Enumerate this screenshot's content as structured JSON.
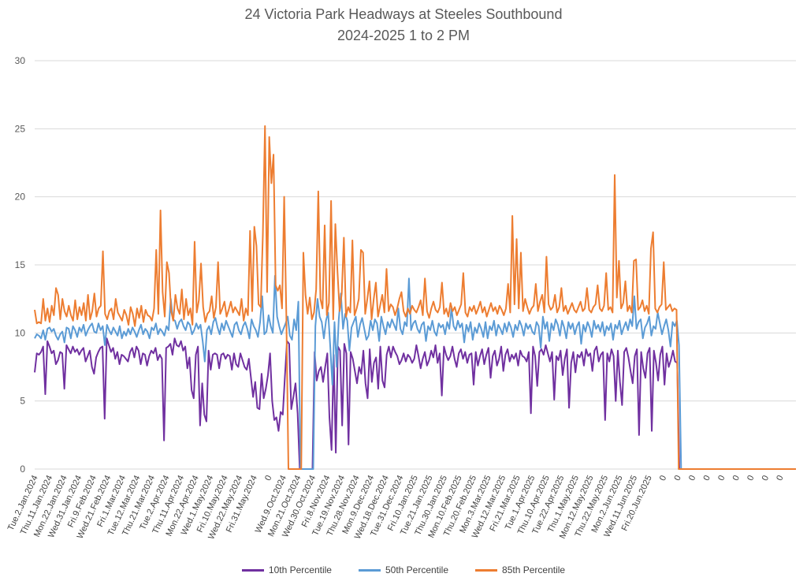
{
  "chart_data": {
    "type": "line",
    "title": [
      "24 Victoria Park Headways at Steeles Southbound",
      "2024-2025 1 to 2 PM"
    ],
    "xlabel": "",
    "ylabel": "",
    "ylim": [
      0,
      30
    ],
    "yticks": [
      0,
      5,
      10,
      15,
      20,
      25,
      30
    ],
    "grid": "horizontal",
    "legend_position": "bottom",
    "x_tick_labels": [
      "Tue.2.Jan.2024",
      "Thu.11.Jan.2024",
      "Mon.22.Jan.2024",
      "Wed.31.Jan.2024",
      "Fri.9.Feb.2024",
      "Wed.21.Feb.2024",
      "Fri.1.Mar.2024",
      "Tue.12.Mar.2024",
      "Thu.21.Mar.2024",
      "Tue.2.Apr.2024",
      "Thu.11.Apr.2024",
      "Mon.22.Apr.2024",
      "Wed.1.May.2024",
      "Fri.10.May.2024",
      "Wed.22.May.2024",
      "Fri.31.May.2024",
      "0",
      "Wed.9.Oct.2024",
      "Mon.21.Oct.2024",
      "Wed.30.Oct.2024",
      "Fri.8.Nov.2024",
      "Tue.19.Nov.2024",
      "Thu.28.Nov.2024",
      "Mon.9.Dec.2024",
      "Wed.18.Dec.2024",
      "Tue.31.Dec.2024",
      "Fri.10.Jan.2025",
      "Tue.21.Jan.2025",
      "Thu.30.Jan.2025",
      "Mon.10.Feb.2025",
      "Thu.20.Feb.2025",
      "Mon.3.Mar.2025",
      "Wed.12.Mar.2025",
      "Fri.21.Mar.2025",
      "Tue.1.Apr.2025",
      "Thu.10.Apr.2025",
      "Tue.22.Apr.2025",
      "Thu.1.May.2025",
      "Mon.12.May.2025",
      "Thu.22.May.2025",
      "Mon.2.Jun.2025",
      "Wed.11.Jun.2025",
      "Fri.20.Jun.2025",
      "0",
      "0",
      "0",
      "0",
      "0",
      "0",
      "0",
      "0",
      "0"
    ],
    "series": [
      {
        "name": "10th Percentile",
        "color": "#7030A0",
        "values": [
          7.1,
          8.5,
          8.4,
          8.6,
          9.0,
          5.5,
          9.4,
          9.0,
          8.5,
          8.7,
          7.7,
          8.0,
          8.6,
          8.5,
          5.9,
          9.1,
          8.8,
          8.5,
          9.0,
          8.6,
          8.8,
          8.4,
          8.7,
          8.9,
          7.9,
          8.3,
          8.7,
          7.5,
          7.0,
          8.2,
          8.6,
          8.9,
          9.0,
          3.7,
          9.6,
          9.1,
          8.6,
          8.9,
          8.1,
          8.6,
          7.7,
          8.4,
          8.3,
          8.1,
          7.9,
          8.6,
          8.9,
          8.2,
          9.0,
          8.7,
          7.7,
          8.5,
          8.4,
          7.6,
          8.3,
          8.7,
          8.5,
          8.9,
          8.0,
          8.4,
          8.1,
          2.1,
          8.9,
          9.0,
          9.2,
          8.4,
          9.6,
          9.1,
          9.0,
          9.4,
          8.7,
          9.0,
          7.4,
          8.2,
          5.8,
          5.2,
          8.4,
          9.0,
          3.2,
          6.3,
          4.0,
          3.5,
          8.7,
          7.3,
          8.4,
          8.5,
          8.4,
          7.4,
          8.4,
          8.5,
          8.1,
          8.4,
          8.3,
          7.3,
          8.5,
          7.7,
          7.5,
          8.5,
          8.0,
          7.5,
          7.3,
          8.1,
          6.7,
          5.3,
          6.4,
          4.5,
          4.4,
          7.0,
          5.2,
          5.9,
          6.9,
          8.5,
          5.0,
          3.6,
          3.8,
          2.8,
          4.2,
          4.0,
          6.8,
          9.4,
          9.2,
          4.4,
          5.3,
          6.3,
          4.1,
          0,
          0,
          0,
          0,
          0,
          0,
          0,
          8.6,
          6.5,
          7.2,
          7.5,
          6.4,
          7.5,
          8.5,
          3.8,
          1.4,
          8.4,
          1.2,
          9.0,
          8.7,
          3.2,
          9.2,
          8.5,
          1.8,
          8.6,
          8.1,
          7.2,
          6.3,
          7.5,
          7.0,
          8.7,
          6.3,
          5.2,
          8.8,
          6.4,
          7.8,
          8.2,
          5.9,
          9.0,
          6.5,
          6.0,
          8.4,
          9.0,
          8.2,
          9.0,
          8.6,
          8.3,
          7.7,
          8.0,
          8.5,
          7.9,
          8.4,
          8.2,
          7.8,
          8.1,
          9.1,
          8.3,
          7.4,
          8.1,
          8.6,
          7.6,
          8.0,
          8.7,
          8.2,
          9.1,
          7.8,
          8.5,
          5.4,
          9.0,
          8.4,
          8.0,
          8.3,
          9.0,
          8.1,
          7.5,
          8.5,
          8.8,
          8.1,
          8.6,
          7.8,
          8.4,
          8.5,
          6.2,
          8.6,
          7.6,
          8.3,
          8.8,
          7.7,
          8.4,
          8.9,
          6.7,
          8.3,
          8.7,
          7.6,
          8.1,
          9.0,
          7.2,
          8.4,
          8.8,
          7.9,
          8.4,
          8.1,
          8.5,
          7.6,
          8.7,
          8.3,
          8.2,
          7.9,
          8.6,
          4.1,
          9.0,
          8.3,
          6.1,
          8.6,
          8.8,
          8.4,
          9.1,
          8.5,
          7.9,
          8.6,
          5.1,
          8.3,
          8.0,
          8.7,
          6.9,
          8.1,
          8.8,
          4.5,
          7.8,
          8.6,
          7.1,
          8.4,
          8.2,
          8.6,
          7.6,
          8.8,
          8.3,
          8.5,
          7.2,
          8.7,
          9.0,
          7.9,
          8.4,
          8.6,
          3.6,
          8.5,
          7.9,
          8.8,
          8.3,
          5.0,
          8.7,
          6.4,
          4.7,
          8.6,
          8.9,
          8.2,
          7.2,
          6.3,
          8.3,
          8.8,
          2.5,
          8.6,
          7.4,
          6.7,
          8.5,
          8.9,
          2.8,
          8.7,
          7.8,
          6.5,
          8.4,
          9.0,
          6.2,
          8.5,
          7.5,
          8.0,
          8.7,
          7.9,
          7.8,
          0,
          0,
          0,
          0,
          0,
          0,
          0,
          0,
          0,
          0,
          0,
          0,
          0,
          0,
          0,
          0,
          0,
          0,
          0,
          0,
          0,
          0,
          0,
          0,
          0,
          0,
          0,
          0,
          0,
          0,
          0,
          0,
          0,
          0,
          0,
          0,
          0,
          0,
          0,
          0,
          0,
          0,
          0,
          0,
          0,
          0,
          0,
          0,
          0,
          0,
          0,
          0,
          0,
          0,
          0,
          0
        ]
      },
      {
        "name": "50th Percentile",
        "color": "#5B9BD5",
        "values": [
          9.6,
          9.9,
          9.8,
          9.6,
          10.2,
          9.5,
          10.3,
          10.4,
          10.1,
          10.3,
          9.8,
          9.5,
          9.9,
          10.1,
          9.3,
          10.4,
          10.3,
          9.6,
          10.5,
          10.2,
          9.7,
          10.4,
          10.1,
          10.6,
          9.8,
          10.2,
          10.5,
          10.7,
          10.1,
          10.0,
          10.7,
          10.2,
          10.5,
          9.1,
          10.6,
          10.2,
          9.9,
          10.4,
          10.1,
          9.8,
          10.5,
          9.6,
          10.1,
          9.8,
          10.3,
          9.9,
          10.4,
          10.1,
          9.7,
          10.2,
          10.6,
          9.9,
          10.3,
          10.1,
          9.6,
          10.4,
          10.2,
          10.7,
          9.9,
          10.3,
          10.1,
          9.8,
          10.5,
          10.2,
          12.5,
          11.0,
          10.9,
          10.3,
          10.8,
          11.0,
          10.5,
          10.2,
          10.8,
          10.6,
          9.9,
          10.2,
          10.7,
          10.3,
          10.6,
          9.4,
          7.9,
          10.2,
          10.5,
          9.9,
          10.8,
          11.1,
          10.4,
          9.9,
          10.7,
          10.2,
          10.9,
          10.5,
          10.1,
          9.7,
          10.6,
          10.8,
          10.2,
          9.9,
          10.5,
          10.8,
          10.3,
          9.6,
          11.0,
          10.5,
          10.2,
          9.7,
          10.8,
          12.7,
          9.9,
          10.1,
          11.3,
          10.5,
          10.0,
          14.2,
          11.2,
          10.5,
          9.9,
          10.3,
          10.7,
          11.2,
          9.8,
          9.5,
          11.0,
          10.2,
          12.3,
          0,
          0,
          0,
          0,
          0,
          0,
          0,
          10.5,
          12.5,
          11.2,
          10.8,
          9.6,
          10.9,
          11.5,
          9.0,
          6.2,
          10.8,
          7.5,
          11.0,
          12.9,
          10.3,
          11.4,
          10.9,
          8.7,
          10.4,
          10.8,
          11.2,
          9.7,
          10.6,
          11.1,
          10.3,
          9.5,
          9.8,
          10.9,
          10.2,
          11.0,
          10.7,
          9.4,
          11.2,
          10.5,
          9.9,
          10.8,
          10.4,
          11.0,
          10.6,
          10.2,
          11.8,
          10.3,
          9.9,
          10.8,
          10.5,
          14.0,
          10.2,
          10.7,
          10.9,
          10.3,
          10.0,
          10.6,
          10.8,
          9.4,
          10.5,
          10.2,
          10.9,
          10.1,
          9.8,
          10.7,
          10.4,
          10.6,
          9.9,
          10.8,
          10.3,
          11.8,
          10.5,
          10.2,
          10.9,
          10.4,
          10.7,
          9.3,
          10.6,
          10.1,
          10.8,
          9.5,
          10.4,
          10.0,
          10.7,
          10.3,
          9.7,
          10.8,
          9.6,
          10.5,
          10.2,
          10.9,
          9.8,
          10.6,
          10.3,
          9.9,
          10.7,
          10.1,
          10.8,
          10.4,
          9.7,
          10.6,
          10.2,
          10.9,
          10.5,
          9.8,
          10.7,
          10.3,
          10.6,
          10.1,
          9.9,
          10.8,
          10.5,
          8.9,
          11.2,
          10.3,
          10.8,
          9.4,
          10.7,
          10.2,
          11.0,
          10.6,
          9.8,
          10.9,
          10.4,
          9.6,
          10.8,
          10.3,
          10.7,
          9.9,
          10.5,
          10.8,
          9.2,
          10.6,
          10.1,
          10.8,
          10.4,
          9.7,
          10.9,
          10.3,
          10.6,
          10.1,
          10.8,
          9.8,
          10.5,
          10.2,
          10.7,
          9.5,
          10.6,
          10.3,
          10.9,
          9.9,
          10.4,
          10.8,
          10.2,
          11.0,
          10.5,
          12.7,
          10.3,
          10.8,
          11.0,
          9.6,
          10.4,
          10.7,
          11.2,
          9.8,
          10.5,
          10.3,
          11.5,
          10.7,
          9.9,
          10.5,
          11.0,
          10.2,
          9.0,
          10.8,
          10.5,
          10.9,
          9.1,
          0,
          0,
          0,
          0,
          0,
          0,
          0,
          0,
          0,
          0,
          0,
          0,
          0,
          0,
          0,
          0,
          0,
          0,
          0,
          0,
          0,
          0,
          0,
          0,
          0,
          0,
          0,
          0,
          0,
          0,
          0,
          0,
          0,
          0,
          0,
          0,
          0,
          0,
          0,
          0,
          0,
          0,
          0,
          0,
          0,
          0,
          0,
          0,
          0,
          0,
          0,
          0,
          0,
          0,
          0
        ]
      },
      {
        "name": "85th Percentile",
        "color": "#ED7D31",
        "values": [
          11.7,
          10.7,
          10.8,
          10.7,
          12.5,
          10.9,
          11.8,
          10.8,
          12.0,
          11.3,
          13.3,
          12.8,
          11.0,
          12.5,
          11.6,
          11.2,
          12.0,
          11.3,
          10.9,
          12.4,
          11.0,
          11.9,
          11.3,
          12.2,
          10.9,
          12.8,
          11.0,
          11.6,
          12.9,
          11.2,
          11.8,
          12.0,
          16.0,
          11.4,
          11.0,
          11.6,
          11.8,
          11.0,
          12.5,
          11.5,
          11.2,
          10.9,
          11.7,
          11.3,
          10.6,
          11.9,
          11.4,
          10.5,
          11.8,
          11.1,
          12.0,
          10.8,
          11.7,
          11.3,
          11.2,
          10.9,
          11.8,
          16.1,
          11.4,
          19.0,
          13.0,
          11.2,
          15.2,
          14.4,
          11.6,
          10.9,
          12.8,
          11.8,
          11.4,
          13.2,
          11.0,
          12.5,
          11.3,
          11.8,
          10.6,
          16.7,
          11.5,
          12.4,
          15.1,
          11.9,
          10.8,
          11.4,
          11.6,
          12.7,
          11.1,
          11.9,
          15.2,
          11.4,
          11.8,
          12.3,
          11.2,
          11.7,
          12.3,
          11.5,
          11.9,
          11.6,
          11.3,
          12.5,
          10.9,
          11.8,
          11.3,
          17.5,
          11.6,
          17.8,
          16.4,
          12.1,
          11.9,
          17.2,
          25.2,
          13.0,
          24.4,
          21.0,
          23.1,
          13.5,
          13.1,
          13.5,
          11.8,
          20.0,
          11.4,
          0,
          0,
          0,
          0,
          0,
          0,
          0,
          15.9,
          12.8,
          11.4,
          12.6,
          11.0,
          11.5,
          13.2,
          20.4,
          12.5,
          11.8,
          17.9,
          11.3,
          12.2,
          19.7,
          11.0,
          18.0,
          14.5,
          11.6,
          12.9,
          17.0,
          11.2,
          11.9,
          11.5,
          16.8,
          11.3,
          11.8,
          12.5,
          16.1,
          15.9,
          11.4,
          12.5,
          13.8,
          11.0,
          12.5,
          13.7,
          11.2,
          12.0,
          12.8,
          11.5,
          14.7,
          11.6,
          12.1,
          11.9,
          11.3,
          11.8,
          12.5,
          13.0,
          11.6,
          11.2,
          11.8,
          11.4,
          12.0,
          11.7,
          11.5,
          11.9,
          12.4,
          11.3,
          14.0,
          11.6,
          11.1,
          11.8,
          12.3,
          11.7,
          11.5,
          11.9,
          13.7,
          11.4,
          11.8,
          11.2,
          12.2,
          11.6,
          11.9,
          11.3,
          11.7,
          12.1,
          14.4,
          11.5,
          11.2,
          11.9,
          11.6,
          12.0,
          11.4,
          11.8,
          12.3,
          11.5,
          11.9,
          11.2,
          11.7,
          12.2,
          11.6,
          11.9,
          11.4,
          12.0,
          11.7,
          11.3,
          11.8,
          13.6,
          11.5,
          18.6,
          12.1,
          16.9,
          11.8,
          15.9,
          11.6,
          12.5,
          11.9,
          11.4,
          11.8,
          12.0,
          13.6,
          11.6,
          12.3,
          12.8,
          11.5,
          15.6,
          12.1,
          11.7,
          11.9,
          12.8,
          11.5,
          11.9,
          13.3,
          11.6,
          12.0,
          11.4,
          11.8,
          12.2,
          11.7,
          11.5,
          11.9,
          12.3,
          11.6,
          11.8,
          13.3,
          11.7,
          11.5,
          11.9,
          12.1,
          13.5,
          11.8,
          11.6,
          12.0,
          14.4,
          11.7,
          11.9,
          11.5,
          21.6,
          12.6,
          15.3,
          11.8,
          12.2,
          13.8,
          11.6,
          12.0,
          11.5,
          15.3,
          15.4,
          11.7,
          11.9,
          12.4,
          11.6,
          12.0,
          11.4,
          16.2,
          17.4,
          11.8,
          11.5,
          11.9,
          12.1,
          15.2,
          11.7,
          11.9,
          12.1,
          11.6,
          11.8,
          11.7,
          0,
          0,
          0,
          0,
          0,
          0,
          0,
          0,
          0,
          0,
          0,
          0,
          0,
          0,
          0,
          0,
          0,
          0,
          0,
          0,
          0,
          0,
          0,
          0,
          0,
          0,
          0,
          0,
          0,
          0,
          0,
          0,
          0,
          0,
          0,
          0,
          0,
          0,
          0,
          0,
          0,
          0,
          0,
          0,
          0,
          0,
          0,
          0,
          0,
          0,
          0,
          0,
          0,
          0,
          0,
          0
        ]
      }
    ]
  }
}
